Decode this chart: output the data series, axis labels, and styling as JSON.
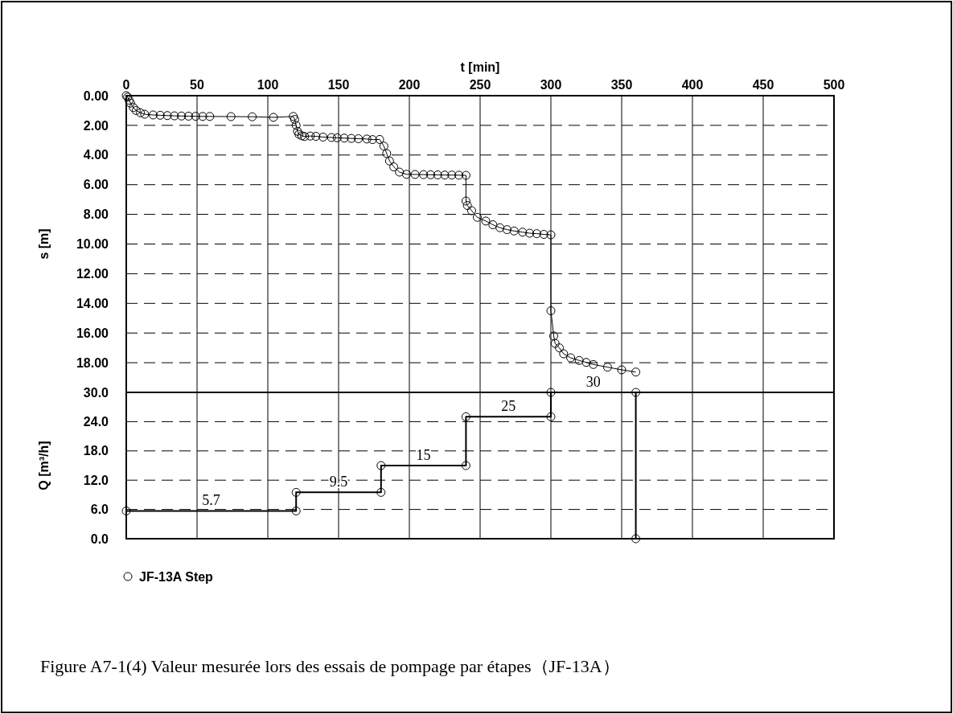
{
  "chart_data": [
    {
      "type": "line",
      "xlabel": "t [min]",
      "ylabel": "s [m]",
      "marker": "circle",
      "grid": true,
      "legend": "bottom",
      "xlim": [
        0,
        500
      ],
      "xticks": [
        0,
        50,
        100,
        150,
        200,
        250,
        300,
        350,
        400,
        450,
        500
      ],
      "ylim": [
        20,
        0
      ],
      "yticks": [
        {
          "value": 0,
          "label": "0.00"
        },
        {
          "value": 2,
          "label": "2.00"
        },
        {
          "value": 4,
          "label": "4.00"
        },
        {
          "value": 6,
          "label": "6.00"
        },
        {
          "value": 8,
          "label": "8.00"
        },
        {
          "value": 10,
          "label": "10.00"
        },
        {
          "value": 12,
          "label": "12.00"
        },
        {
          "value": 14,
          "label": "14.00"
        },
        {
          "value": 16,
          "label": "16.00"
        },
        {
          "value": 18,
          "label": "18.00"
        },
        {
          "value": 20,
          "label": null
        }
      ],
      "series": [
        {
          "name": "JF-13A Step",
          "color": "#000000",
          "x": [
            0,
            1,
            2,
            3,
            5,
            7,
            10,
            13,
            19,
            24,
            29,
            34,
            39,
            44,
            49,
            54,
            59,
            74,
            89,
            104,
            118,
            119,
            120,
            121,
            122,
            124,
            126,
            130,
            134,
            139,
            145,
            149,
            154,
            159,
            164,
            170,
            174,
            179,
            182,
            184,
            186,
            189,
            193,
            198,
            204,
            210,
            215,
            220,
            225,
            230,
            235,
            240,
            240,
            241,
            244,
            248,
            254,
            259,
            264,
            269,
            274,
            280,
            285,
            290,
            295,
            300,
            300,
            302,
            303,
            306,
            309,
            314,
            320,
            325,
            330,
            340,
            350,
            360
          ],
          "values": [
            0,
            0.1,
            0.3,
            0.5,
            0.8,
            1.0,
            1.15,
            1.25,
            1.3,
            1.32,
            1.34,
            1.36,
            1.37,
            1.38,
            1.39,
            1.4,
            1.4,
            1.41,
            1.42,
            1.46,
            1.4,
            1.6,
            2.0,
            2.4,
            2.6,
            2.7,
            2.75,
            2.72,
            2.74,
            2.79,
            2.82,
            2.84,
            2.86,
            2.88,
            2.9,
            2.92,
            2.96,
            2.95,
            3.4,
            3.9,
            4.4,
            4.8,
            5.15,
            5.3,
            5.31,
            5.32,
            5.33,
            5.34,
            5.35,
            5.35,
            5.36,
            5.37,
            7.1,
            7.4,
            7.75,
            8.2,
            8.45,
            8.7,
            8.9,
            9.03,
            9.12,
            9.2,
            9.27,
            9.3,
            9.35,
            9.38,
            14.5,
            16.2,
            16.7,
            17.0,
            17.4,
            17.67,
            17.85,
            17.98,
            18.12,
            18.3,
            18.48,
            18.63
          ]
        }
      ],
      "annotations": [
        "Figure A7-1(4)  Valeur mesurée lors des essais de pompage par étapes（JF-13A）"
      ]
    },
    {
      "type": "line",
      "ylabel": "Q [m³/h]",
      "marker": "circle",
      "grid": true,
      "tick_labels": "y",
      "xlim": [
        0,
        500
      ],
      "xticks": [
        0,
        50,
        100,
        150,
        200,
        250,
        300,
        350,
        400,
        450,
        500
      ],
      "ylim": [
        0,
        30
      ],
      "yticks": [
        {
          "value": 0,
          "label": "0.0"
        },
        {
          "value": 6,
          "label": "6.0"
        },
        {
          "value": 12,
          "label": "12.0"
        },
        {
          "value": 18,
          "label": "18.0"
        },
        {
          "value": 24,
          "label": "24.0"
        },
        {
          "value": 30,
          "label": "30.0"
        }
      ],
      "series": [
        {
          "color": "#000000",
          "x": [
            0,
            120,
            120,
            180,
            180,
            240,
            240,
            300,
            300,
            360,
            360
          ],
          "values": [
            5.7,
            5.7,
            9.5,
            9.5,
            15,
            15,
            25,
            25,
            30,
            30,
            0
          ]
        }
      ],
      "annotations": [
        {
          "text": "5.7",
          "x": 60,
          "y": 5.7
        },
        {
          "text": "9.5",
          "x": 150,
          "y": 9.5
        },
        {
          "text": "15",
          "x": 210,
          "y": 15
        },
        {
          "text": "25",
          "x": 270,
          "y": 25
        },
        {
          "text": "30",
          "x": 330,
          "y": 30
        }
      ]
    }
  ]
}
